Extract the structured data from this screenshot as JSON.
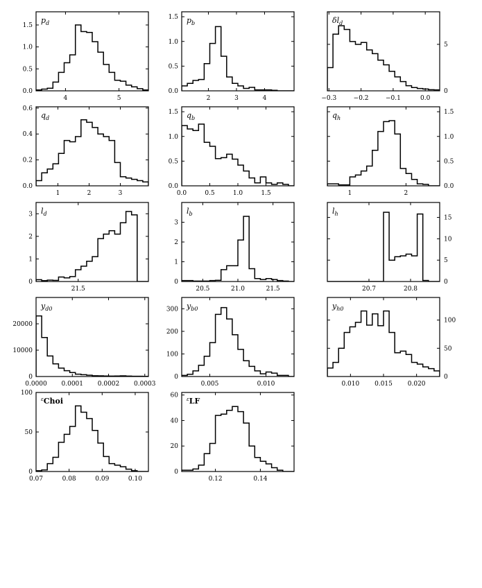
{
  "chart_data": [
    {
      "id": "p_d",
      "type": "histogram",
      "label": {
        "main": "p",
        "sub": "d"
      },
      "yside": "left",
      "xlim": [
        3.45,
        5.55
      ],
      "ylim": [
        0,
        1.8
      ],
      "xticks": [
        {
          "v": 4,
          "t": "4"
        },
        {
          "v": 5,
          "t": "5"
        }
      ],
      "yticks": [
        {
          "v": 0,
          "t": "0.0"
        },
        {
          "v": 0.5,
          "t": "0.5"
        },
        {
          "v": 1.0,
          "t": "1.0"
        },
        {
          "v": 1.5,
          "t": "1.5"
        }
      ],
      "bin_start": 3.45,
      "bin_width": 0.105,
      "values": [
        0.02,
        0.04,
        0.06,
        0.2,
        0.42,
        0.64,
        0.82,
        1.5,
        1.35,
        1.33,
        1.12,
        0.88,
        0.6,
        0.42,
        0.24,
        0.22,
        0.13,
        0.09,
        0.05,
        0.02
      ]
    },
    {
      "id": "p_b",
      "type": "histogram",
      "label": {
        "main": "p",
        "sub": "b"
      },
      "yside": "left",
      "xlim": [
        1.05,
        5.05
      ],
      "ylim": [
        0,
        1.6
      ],
      "xticks": [
        {
          "v": 2,
          "t": "2"
        },
        {
          "v": 3,
          "t": "3"
        },
        {
          "v": 4,
          "t": "4"
        }
      ],
      "yticks": [
        {
          "v": 0,
          "t": "0.0"
        },
        {
          "v": 0.5,
          "t": "0.5"
        },
        {
          "v": 1.0,
          "t": "1.0"
        },
        {
          "v": 1.5,
          "t": "1.5"
        }
      ],
      "bin_start": 1.05,
      "bin_width": 0.2,
      "values": [
        0.1,
        0.15,
        0.21,
        0.23,
        0.55,
        0.96,
        1.3,
        0.7,
        0.28,
        0.15,
        0.1,
        0.05,
        0.07,
        0.02,
        0.02,
        0.02,
        0.01,
        0,
        0,
        0
      ]
    },
    {
      "id": "dl_d",
      "type": "histogram",
      "label": {
        "main": "δl",
        "sub": "d"
      },
      "yside": "right",
      "xlim": [
        -0.305,
        0.045
      ],
      "ylim": [
        0,
        8.5
      ],
      "xticks": [
        {
          "v": -0.3,
          "t": "−0.3"
        },
        {
          "v": -0.2,
          "t": "−0.2"
        },
        {
          "v": -0.1,
          "t": "−0.1"
        },
        {
          "v": 0.0,
          "t": "0.0"
        }
      ],
      "yticks": [
        {
          "v": 0,
          "t": "0"
        },
        {
          "v": 5,
          "t": "5"
        }
      ],
      "bin_start": -0.305,
      "bin_width": 0.0175,
      "values": [
        2.5,
        6.1,
        7.0,
        6.6,
        5.3,
        5.0,
        5.2,
        4.4,
        4.0,
        3.3,
        2.8,
        2.1,
        1.5,
        1.0,
        0.55,
        0.35,
        0.25,
        0.2,
        0.12,
        0.1
      ]
    },
    {
      "id": "q_d",
      "type": "histogram",
      "label": {
        "main": "q",
        "sub": "d"
      },
      "yside": "left",
      "xlim": [
        0.3,
        3.9
      ],
      "ylim": [
        0,
        0.61
      ],
      "xticks": [
        {
          "v": 1,
          "t": "1"
        },
        {
          "v": 2,
          "t": "2"
        },
        {
          "v": 3,
          "t": "3"
        }
      ],
      "yticks": [
        {
          "v": 0,
          "t": "0.0"
        },
        {
          "v": 0.2,
          "t": "0.2"
        },
        {
          "v": 0.4,
          "t": "0.4"
        },
        {
          "v": 0.6,
          "t": "0.6"
        }
      ],
      "bin_start": 0.3,
      "bin_width": 0.18,
      "values": [
        0.04,
        0.1,
        0.13,
        0.17,
        0.25,
        0.35,
        0.34,
        0.38,
        0.51,
        0.49,
        0.45,
        0.4,
        0.38,
        0.35,
        0.18,
        0.07,
        0.06,
        0.05,
        0.04,
        0.03
      ]
    },
    {
      "id": "q_b",
      "type": "histogram",
      "label": {
        "main": "q",
        "sub": "b"
      },
      "yside": "left",
      "xlim": [
        0.0,
        2.0
      ],
      "ylim": [
        0,
        1.6
      ],
      "xticks": [
        {
          "v": 0.0,
          "t": "0.0"
        },
        {
          "v": 0.5,
          "t": "0.5"
        },
        {
          "v": 1.0,
          "t": "1.0"
        },
        {
          "v": 1.5,
          "t": "1.5"
        }
      ],
      "yticks": [
        {
          "v": 0,
          "t": "0.0"
        },
        {
          "v": 0.5,
          "t": "0.5"
        },
        {
          "v": 1.0,
          "t": "1.0"
        },
        {
          "v": 1.5,
          "t": "1.5"
        }
      ],
      "bin_start": 0.0,
      "bin_width": 0.1,
      "values": [
        1.22,
        1.15,
        1.12,
        1.25,
        0.88,
        0.8,
        0.55,
        0.57,
        0.64,
        0.54,
        0.42,
        0.3,
        0.16,
        0.06,
        0.18,
        0.06,
        0.03,
        0.06,
        0.03,
        0
      ]
    },
    {
      "id": "q_h",
      "type": "histogram",
      "label": {
        "main": "q",
        "sub": "h"
      },
      "yside": "right",
      "xlim": [
        0.6,
        2.6
      ],
      "ylim": [
        0,
        1.6
      ],
      "xticks": [
        {
          "v": 1,
          "t": "1"
        },
        {
          "v": 2,
          "t": "2"
        }
      ],
      "yticks": [
        {
          "v": 0,
          "t": "0.0"
        },
        {
          "v": 0.5,
          "t": "0.5"
        },
        {
          "v": 1.0,
          "t": "1.0"
        },
        {
          "v": 1.5,
          "t": "1.5"
        }
      ],
      "bin_start": 0.6,
      "bin_width": 0.1,
      "values": [
        0.04,
        0.04,
        0.02,
        0.02,
        0.18,
        0.22,
        0.3,
        0.4,
        0.72,
        1.1,
        1.3,
        1.32,
        1.05,
        0.35,
        0.25,
        0.13,
        0.04,
        0.03,
        0,
        0
      ]
    },
    {
      "id": "l_d",
      "type": "histogram",
      "label": {
        "main": "l",
        "sub": "d"
      },
      "yside": "left",
      "xlim": [
        21.2,
        22.0
      ],
      "ylim": [
        0,
        3.5
      ],
      "xticks": [
        {
          "v": 21.5,
          "t": "21.5"
        }
      ],
      "yticks": [
        {
          "v": 0,
          "t": "0"
        },
        {
          "v": 1,
          "t": "1"
        },
        {
          "v": 2,
          "t": "2"
        },
        {
          "v": 3,
          "t": "3"
        }
      ],
      "bin_start": 21.2,
      "bin_width": 0.04,
      "values": [
        0.08,
        0.04,
        0.06,
        0.05,
        0.2,
        0.16,
        0.22,
        0.52,
        0.68,
        0.9,
        1.1,
        1.9,
        2.1,
        2.25,
        2.1,
        2.6,
        3.1,
        2.95,
        0,
        0
      ]
    },
    {
      "id": "l_b",
      "type": "histogram",
      "label": {
        "main": "l",
        "sub": "b"
      },
      "yside": "left",
      "xlim": [
        20.2,
        21.8
      ],
      "ylim": [
        0,
        4.0
      ],
      "xticks": [
        {
          "v": 20.5,
          "t": "20.5"
        },
        {
          "v": 21.0,
          "t": "21.0"
        },
        {
          "v": 21.5,
          "t": "21.5"
        }
      ],
      "yticks": [
        {
          "v": 0,
          "t": "0"
        },
        {
          "v": 1,
          "t": "1"
        },
        {
          "v": 2,
          "t": "2"
        },
        {
          "v": 3,
          "t": "3"
        }
      ],
      "bin_start": 20.2,
      "bin_width": 0.08,
      "values": [
        0.05,
        0.05,
        0.02,
        0.02,
        0.02,
        0.05,
        0.06,
        0.6,
        0.8,
        0.8,
        2.1,
        3.3,
        0.65,
        0.15,
        0.1,
        0.15,
        0.1,
        0.05,
        0.02,
        0
      ]
    },
    {
      "id": "l_h",
      "type": "histogram",
      "label": {
        "main": "l",
        "sub": "h"
      },
      "yside": "right",
      "xlim": [
        20.6,
        20.87
      ],
      "ylim": [
        0,
        18.5
      ],
      "xticks": [
        {
          "v": 20.7,
          "t": "20.7"
        },
        {
          "v": 20.8,
          "t": "20.8"
        }
      ],
      "yticks": [
        {
          "v": 0,
          "t": "0"
        },
        {
          "v": 5,
          "t": "5"
        },
        {
          "v": 10,
          "t": "10"
        },
        {
          "v": 15,
          "t": "15"
        }
      ],
      "bin_start": 20.6,
      "bin_width": 0.0135,
      "values": [
        0,
        0,
        0,
        0,
        0,
        0,
        0,
        0,
        0,
        0,
        16.2,
        5.0,
        5.8,
        6.0,
        6.4,
        6.0,
        15.8,
        0.25,
        0,
        0
      ]
    },
    {
      "id": "y_d0",
      "type": "histogram",
      "label": {
        "main": "y",
        "sub": "d0"
      },
      "yside": "left",
      "xlim": [
        0.0,
        0.00031
      ],
      "ylim": [
        0,
        30000
      ],
      "xticks": [
        {
          "v": 0.0,
          "t": "0.0000"
        },
        {
          "v": 0.0001,
          "t": "0.0001"
        },
        {
          "v": 0.0002,
          "t": "0.0002"
        },
        {
          "v": 0.0003,
          "t": "0.0003"
        }
      ],
      "yticks": [
        {
          "v": 0,
          "t": "0"
        },
        {
          "v": 10000,
          "t": "10000"
        },
        {
          "v": 20000,
          "t": "20000"
        }
      ],
      "bin_start": 0.0,
      "bin_width": 1.55e-05,
      "values": [
        23000,
        14800,
        7800,
        4800,
        3200,
        2200,
        1500,
        900,
        700,
        500,
        300,
        250,
        200,
        150,
        200,
        250,
        150,
        100,
        100,
        50
      ]
    },
    {
      "id": "y_b0",
      "type": "histogram",
      "label": {
        "main": "y",
        "sub": "b0"
      },
      "yside": "left",
      "xlim": [
        0.0025,
        0.0125
      ],
      "ylim": [
        0,
        350
      ],
      "xticks": [
        {
          "v": 0.005,
          "t": "0.005"
        },
        {
          "v": 0.01,
          "t": "0.010"
        }
      ],
      "yticks": [
        {
          "v": 0,
          "t": "0"
        },
        {
          "v": 100,
          "t": "100"
        },
        {
          "v": 200,
          "t": "200"
        },
        {
          "v": 300,
          "t": "300"
        }
      ],
      "bin_start": 0.0025,
      "bin_width": 0.0005,
      "values": [
        5,
        10,
        25,
        50,
        90,
        150,
        275,
        305,
        255,
        185,
        120,
        70,
        45,
        25,
        12,
        20,
        15,
        5,
        5,
        0
      ]
    },
    {
      "id": "y_h0",
      "type": "histogram",
      "label": {
        "main": "y",
        "sub": "h0"
      },
      "yside": "right",
      "xlim": [
        0.0065,
        0.0235
      ],
      "ylim": [
        0,
        140
      ],
      "xticks": [
        {
          "v": 0.01,
          "t": "0.010"
        },
        {
          "v": 0.015,
          "t": "0.015"
        },
        {
          "v": 0.02,
          "t": "0.020"
        }
      ],
      "yticks": [
        {
          "v": 0,
          "t": "0"
        },
        {
          "v": 50,
          "t": "50"
        },
        {
          "v": 100,
          "t": "100"
        }
      ],
      "bin_start": 0.0065,
      "bin_width": 0.00085,
      "values": [
        15,
        25,
        50,
        78,
        88,
        96,
        116,
        91,
        111,
        90,
        116,
        78,
        42,
        45,
        39,
        25,
        22,
        17,
        14,
        10
      ]
    },
    {
      "id": "e_choi",
      "type": "histogram",
      "label": {
        "main": "ε",
        "sub": "Choi",
        "style": "eps"
      },
      "yside": "left",
      "xlim": [
        0.07,
        0.104
      ],
      "ylim": [
        0,
        100
      ],
      "xticks": [
        {
          "v": 0.07,
          "t": "0.07"
        },
        {
          "v": 0.08,
          "t": "0.08"
        },
        {
          "v": 0.09,
          "t": "0.09"
        },
        {
          "v": 0.1,
          "t": "0.10"
        }
      ],
      "yticks": [
        {
          "v": 0,
          "t": "0"
        },
        {
          "v": 50,
          "t": "50"
        },
        {
          "v": 100,
          "t": "100"
        }
      ],
      "bin_start": 0.07,
      "bin_width": 0.0017,
      "values": [
        1,
        2,
        10,
        18,
        37,
        47,
        57,
        83,
        75,
        67,
        52,
        36,
        19,
        10,
        8,
        6,
        3,
        1,
        0,
        0
      ]
    },
    {
      "id": "e_lf",
      "type": "histogram",
      "label": {
        "main": "ε",
        "sub": "LF",
        "style": "eps"
      },
      "yside": "left",
      "xlim": [
        0.105,
        0.155
      ],
      "ylim": [
        0,
        62
      ],
      "xticks": [
        {
          "v": 0.12,
          "t": "0.12"
        },
        {
          "v": 0.14,
          "t": "0.14"
        }
      ],
      "yticks": [
        {
          "v": 0,
          "t": "0"
        },
        {
          "v": 20,
          "t": "20"
        },
        {
          "v": 40,
          "t": "40"
        },
        {
          "v": 60,
          "t": "60"
        }
      ],
      "bin_start": 0.105,
      "bin_width": 0.0025,
      "values": [
        1,
        1,
        2,
        5,
        14,
        22,
        44,
        45,
        48,
        51,
        47,
        38,
        20,
        11,
        8,
        6,
        3,
        1,
        0,
        0
      ]
    }
  ]
}
